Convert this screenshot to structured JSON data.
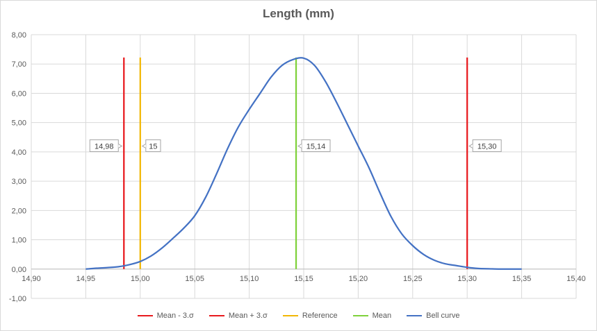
{
  "chart_data": {
    "type": "line",
    "title": "Length (mm)",
    "xlabel": "",
    "ylabel": "",
    "xlim": [
      14.9,
      15.4
    ],
    "ylim": [
      -1.0,
      8.0
    ],
    "x_ticks": [
      "14,90",
      "14,95",
      "15,00",
      "15,05",
      "15,10",
      "15,15",
      "15,20",
      "15,25",
      "15,30",
      "15,35",
      "15,40"
    ],
    "y_ticks": [
      "-1,00",
      "0,00",
      "1,00",
      "2,00",
      "3,00",
      "4,00",
      "5,00",
      "6,00",
      "7,00",
      "8,00"
    ],
    "grid": true,
    "legend_position": "bottom",
    "series": [
      {
        "name": "Mean - 3.σ",
        "color": "#e8191d",
        "x": [
          14.985,
          14.985
        ],
        "y": [
          0.0,
          7.22
        ],
        "label": "14,98"
      },
      {
        "name": "Mean + 3.σ",
        "color": "#e8191d",
        "x": [
          15.3,
          15.3
        ],
        "y": [
          0.0,
          7.22
        ],
        "label": "15,30"
      },
      {
        "name": "Reference",
        "color": "#f2b705",
        "x": [
          15.0,
          15.0
        ],
        "y": [
          0.0,
          7.22
        ],
        "label": "15"
      },
      {
        "name": "Mean",
        "color": "#7fd13b",
        "x": [
          15.143,
          15.143
        ],
        "y": [
          0.0,
          7.22
        ],
        "label": "15,14"
      },
      {
        "name": "Bell curve",
        "color": "#4472c4",
        "x": [
          14.95,
          14.96,
          14.97,
          14.98,
          14.99,
          15.0,
          15.01,
          15.02,
          15.03,
          15.04,
          15.05,
          15.06,
          15.07,
          15.08,
          15.09,
          15.1,
          15.11,
          15.12,
          15.13,
          15.14,
          15.15,
          15.16,
          15.17,
          15.18,
          15.19,
          15.2,
          15.21,
          15.22,
          15.23,
          15.24,
          15.25,
          15.26,
          15.27,
          15.28,
          15.29,
          15.3,
          15.31,
          15.32,
          15.33,
          15.34,
          15.35
        ],
        "y": [
          0.0,
          0.03,
          0.05,
          0.08,
          0.15,
          0.26,
          0.45,
          0.72,
          1.05,
          1.4,
          1.82,
          2.45,
          3.25,
          4.1,
          4.85,
          5.45,
          6.0,
          6.55,
          6.95,
          7.15,
          7.2,
          6.95,
          6.4,
          5.7,
          4.95,
          4.2,
          3.45,
          2.6,
          1.8,
          1.2,
          0.8,
          0.5,
          0.3,
          0.18,
          0.12,
          0.06,
          0.02,
          0.01,
          0.0,
          0.0,
          0.0
        ]
      }
    ]
  }
}
